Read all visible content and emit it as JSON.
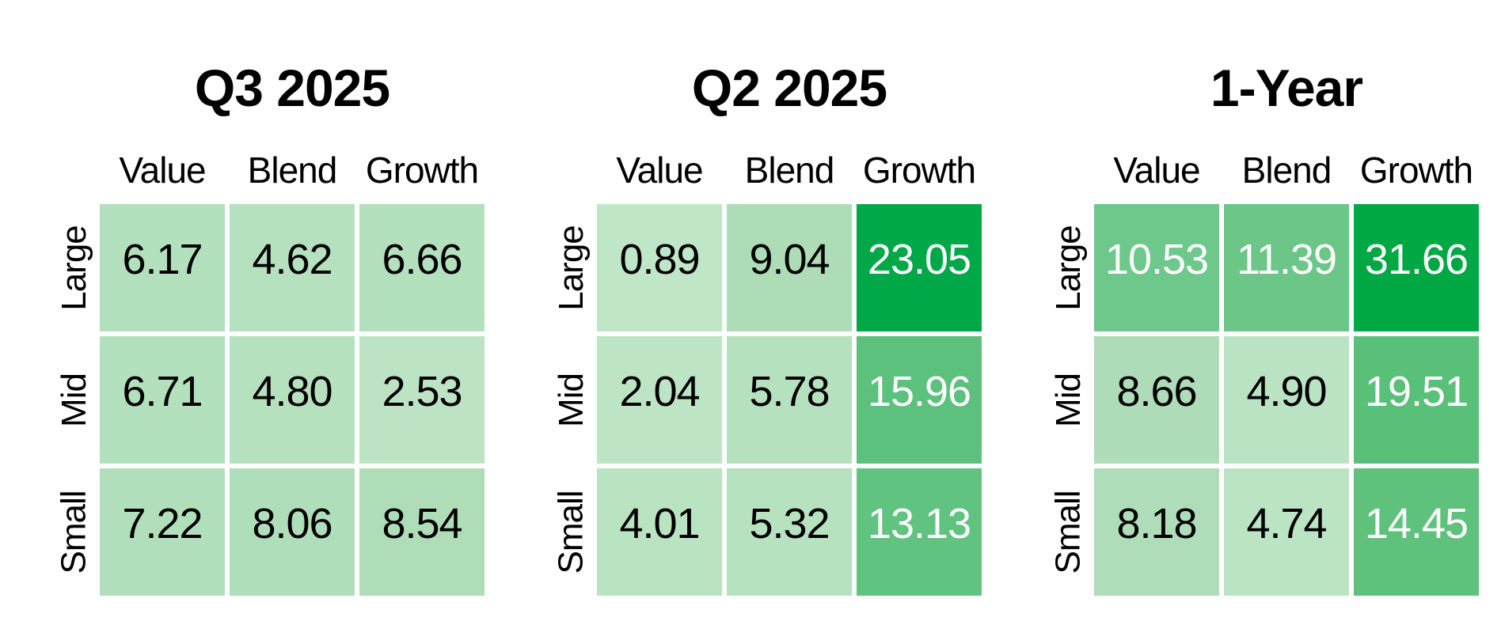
{
  "figure": {
    "background": "#ffffff",
    "text_color": "#000000",
    "palette": {
      "light_green": "#b4e1be",
      "medium_green": "#5ec27d",
      "dark_green": "#00a847",
      "light_cell_text": "#000000",
      "dark_cell_text": "#ffffff"
    }
  },
  "panels": [
    {
      "title": "Q3 2025",
      "columns": [
        "Value",
        "Blend",
        "Growth"
      ],
      "rows": [
        "Large",
        "Mid",
        "Small"
      ],
      "cells": [
        [
          {
            "value": "6.17",
            "bg": "#b3e0bd",
            "fg": "#000000"
          },
          {
            "value": "4.62",
            "bg": "#b6e1bf",
            "fg": "#000000"
          },
          {
            "value": "6.66",
            "bg": "#b3e0bd",
            "fg": "#000000"
          }
        ],
        [
          {
            "value": "6.71",
            "bg": "#b3e0bd",
            "fg": "#000000"
          },
          {
            "value": "4.80",
            "bg": "#b6e1bf",
            "fg": "#000000"
          },
          {
            "value": "2.53",
            "bg": "#bce4c4",
            "fg": "#000000"
          }
        ],
        [
          {
            "value": "7.22",
            "bg": "#b1dfbb",
            "fg": "#000000"
          },
          {
            "value": "8.06",
            "bg": "#afdeba",
            "fg": "#000000"
          },
          {
            "value": "8.54",
            "bg": "#aeddb8",
            "fg": "#000000"
          }
        ]
      ]
    },
    {
      "title": "Q2 2025",
      "columns": [
        "Value",
        "Blend",
        "Growth"
      ],
      "rows": [
        "Large",
        "Mid",
        "Small"
      ],
      "cells": [
        [
          {
            "value": "0.89",
            "bg": "#c0e6c8",
            "fg": "#000000"
          },
          {
            "value": "9.04",
            "bg": "#addcb7",
            "fg": "#000000"
          },
          {
            "value": "23.05",
            "bg": "#00a847",
            "fg": "#ffffff"
          }
        ],
        [
          {
            "value": "2.04",
            "bg": "#bde5c5",
            "fg": "#000000"
          },
          {
            "value": "5.78",
            "bg": "#b5e1be",
            "fg": "#000000"
          },
          {
            "value": "15.96",
            "bg": "#5cc17c",
            "fg": "#ffffff"
          }
        ],
        [
          {
            "value": "4.01",
            "bg": "#b9e3c1",
            "fg": "#000000"
          },
          {
            "value": "5.32",
            "bg": "#b6e2c0",
            "fg": "#000000"
          },
          {
            "value": "13.13",
            "bg": "#61c380",
            "fg": "#ffffff"
          }
        ]
      ]
    },
    {
      "title": "1-Year",
      "columns": [
        "Value",
        "Blend",
        "Growth"
      ],
      "rows": [
        "Large",
        "Mid",
        "Small"
      ],
      "cells": [
        [
          {
            "value": "10.53",
            "bg": "#6fc88b",
            "fg": "#ffffff"
          },
          {
            "value": "11.39",
            "bg": "#6cc687",
            "fg": "#ffffff"
          },
          {
            "value": "31.66",
            "bg": "#00a843",
            "fg": "#ffffff"
          }
        ],
        [
          {
            "value": "8.66",
            "bg": "#aedcb8",
            "fg": "#000000"
          },
          {
            "value": "4.90",
            "bg": "#bae3c3",
            "fg": "#000000"
          },
          {
            "value": "19.51",
            "bg": "#58c078",
            "fg": "#ffffff"
          }
        ],
        [
          {
            "value": "8.18",
            "bg": "#afddb9",
            "fg": "#000000"
          },
          {
            "value": "4.74",
            "bg": "#bbe4c4",
            "fg": "#000000"
          },
          {
            "value": "14.45",
            "bg": "#5ec27d",
            "fg": "#ffffff"
          }
        ]
      ]
    }
  ],
  "chart_data": [
    {
      "type": "heatmap",
      "title": "Q3 2025",
      "x_categories": [
        "Value",
        "Blend",
        "Growth"
      ],
      "y_categories": [
        "Large",
        "Mid",
        "Small"
      ],
      "values": [
        [
          6.17,
          4.62,
          6.66
        ],
        [
          6.71,
          4.8,
          2.53
        ],
        [
          7.22,
          8.06,
          8.54
        ]
      ],
      "value_unit": "percent return",
      "legend": "none",
      "grid": "off",
      "color_scale": "light green (low) to dark green (high)"
    },
    {
      "type": "heatmap",
      "title": "Q2 2025",
      "x_categories": [
        "Value",
        "Blend",
        "Growth"
      ],
      "y_categories": [
        "Large",
        "Mid",
        "Small"
      ],
      "values": [
        [
          0.89,
          9.04,
          23.05
        ],
        [
          2.04,
          5.78,
          15.96
        ],
        [
          4.01,
          5.32,
          13.13
        ]
      ],
      "value_unit": "percent return",
      "legend": "none",
      "grid": "off",
      "color_scale": "light green (low) to dark green (high)"
    },
    {
      "type": "heatmap",
      "title": "1-Year",
      "x_categories": [
        "Value",
        "Blend",
        "Growth"
      ],
      "y_categories": [
        "Large",
        "Mid",
        "Small"
      ],
      "values": [
        [
          10.53,
          11.39,
          31.66
        ],
        [
          8.66,
          4.9,
          19.51
        ],
        [
          8.18,
          4.74,
          14.45
        ]
      ],
      "value_unit": "percent return",
      "legend": "none",
      "grid": "off",
      "color_scale": "light green (low) to dark green (high)"
    }
  ]
}
